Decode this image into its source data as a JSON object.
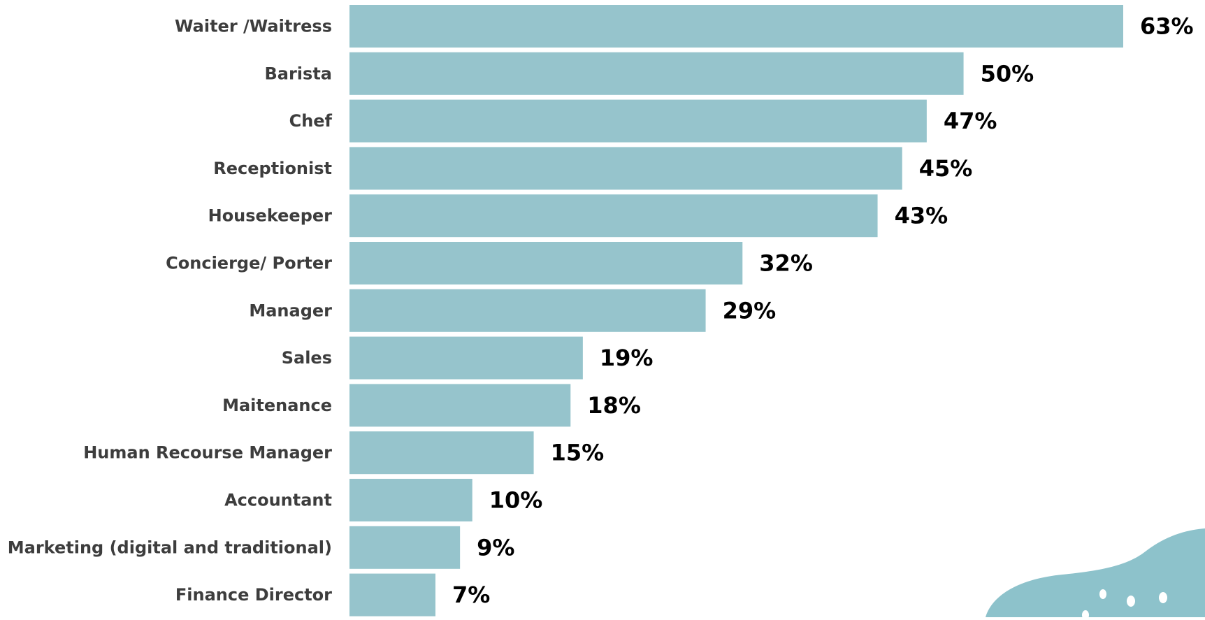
{
  "colors": {
    "bar": "#96c4cc",
    "category_text": "#3d3d3d",
    "value_text": "#000000",
    "decoration": "#8dc2cb",
    "decoration_dots": "#ffffff"
  },
  "chart_data": {
    "type": "bar",
    "orientation": "horizontal",
    "title": "",
    "xlabel": "",
    "ylabel": "",
    "grid": false,
    "legend": "none",
    "xlim": [
      0,
      63
    ],
    "value_format": "{v}%",
    "categories": [
      "Waiter /Waitress",
      "Barista",
      "Chef",
      "Receptionist",
      "Housekeeper",
      "Concierge/ Porter",
      "Manager",
      "Sales",
      "Maitenance",
      "Human Recourse Manager",
      "Accountant",
      "Marketing (digital and traditional)",
      "Finance Director"
    ],
    "values": [
      63,
      50,
      47,
      45,
      43,
      32,
      29,
      19,
      18,
      15,
      10,
      9,
      7
    ],
    "value_labels": [
      "63%",
      "50%",
      "47%",
      "45%",
      "43%",
      "32%",
      "29%",
      "19%",
      "18%",
      "15%",
      "10%",
      "9%",
      "7%"
    ]
  }
}
